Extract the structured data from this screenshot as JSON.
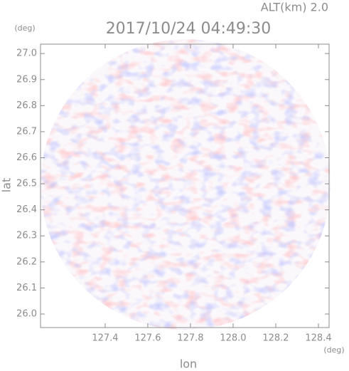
{
  "chart_data": {
    "type": "ppi",
    "subtitle": "ALT(km) 2.0",
    "title": "2017/10/24 04:49:30",
    "y_unit": "(deg)",
    "x_unit": "(deg)",
    "y_label": "lat",
    "x_label": "lon",
    "xlim": [
      127.097,
      128.45
    ],
    "ylim": [
      25.948,
      27.036
    ],
    "xticks": [
      127.4,
      127.6,
      127.8,
      {
        "value": 128,
        "label": "128.0"
      },
      128.2,
      128.4
    ],
    "yticks": [
      {
        "value": 26,
        "label": "26.0"
      },
      26.1,
      26.2,
      26.3,
      26.4,
      26.5,
      26.6,
      26.7,
      26.8,
      26.9,
      {
        "value": 27,
        "label": "27.0"
      }
    ],
    "axis_color": "#8c8c8c"
  }
}
